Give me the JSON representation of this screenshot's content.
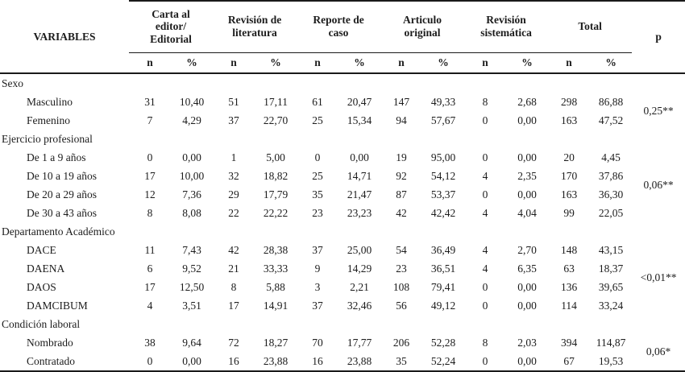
{
  "table": {
    "variables_header": "VARIABLES",
    "p_header": "p",
    "sub_headers": [
      "n",
      "%"
    ],
    "groups": [
      "Carta al\neditor/\nEditorial",
      "Revisión de\nliteratura",
      "Reporte de\ncaso",
      "Articulo\noriginal",
      "Revisión\nsistemática",
      "Total"
    ],
    "sections": [
      {
        "label": "Sexo",
        "p": "0,25**",
        "rows": [
          {
            "label": "Masculino",
            "values": [
              "31",
              "10,40",
              "51",
              "17,11",
              "61",
              "20,47",
              "147",
              "49,33",
              "8",
              "2,68",
              "298",
              "86,88"
            ]
          },
          {
            "label": "Femenino",
            "values": [
              "7",
              "4,29",
              "37",
              "22,70",
              "25",
              "15,34",
              "94",
              "57,67",
              "0",
              "0,00",
              "163",
              "47,52"
            ]
          }
        ]
      },
      {
        "label": "Ejercicio profesional",
        "p": "0,06**",
        "rows": [
          {
            "label": "De 1 a 9 años",
            "values": [
              "0",
              "0,00",
              "1",
              "5,00",
              "0",
              "0,00",
              "19",
              "95,00",
              "0",
              "0,00",
              "20",
              "4,45"
            ]
          },
          {
            "label": "De 10 a 19 años",
            "values": [
              "17",
              "10,00",
              "32",
              "18,82",
              "25",
              "14,71",
              "92",
              "54,12",
              "4",
              "2,35",
              "170",
              "37,86"
            ]
          },
          {
            "label": "De 20 a 29 años",
            "values": [
              "12",
              "7,36",
              "29",
              "17,79",
              "35",
              "21,47",
              "87",
              "53,37",
              "0",
              "0,00",
              "163",
              "36,30"
            ]
          },
          {
            "label": "De 30 a 43 años",
            "values": [
              "8",
              "8,08",
              "22",
              "22,22",
              "23",
              "23,23",
              "42",
              "42,42",
              "4",
              "4,04",
              "99",
              "22,05"
            ]
          }
        ]
      },
      {
        "label": "Departamento Académico",
        "p": "<0,01**",
        "rows": [
          {
            "label": "DACE",
            "values": [
              "11",
              "7,43",
              "42",
              "28,38",
              "37",
              "25,00",
              "54",
              "36,49",
              "4",
              "2,70",
              "148",
              "43,15"
            ]
          },
          {
            "label": "DAENA",
            "values": [
              "6",
              "9,52",
              "21",
              "33,33",
              "9",
              "14,29",
              "23",
              "36,51",
              "4",
              "6,35",
              "63",
              "18,37"
            ]
          },
          {
            "label": "DAOS",
            "values": [
              "17",
              "12,50",
              "8",
              "5,88",
              "3",
              "2,21",
              "108",
              "79,41",
              "0",
              "0,00",
              "136",
              "39,65"
            ]
          },
          {
            "label": "DAMCIBUM",
            "values": [
              "4",
              "3,51",
              "17",
              "14,91",
              "37",
              "32,46",
              "56",
              "49,12",
              "0",
              "0,00",
              "114",
              "33,24"
            ]
          }
        ]
      },
      {
        "label": "Condición laboral",
        "p": "0,06*",
        "rows": [
          {
            "label": "Nombrado",
            "values": [
              "38",
              "9,64",
              "72",
              "18,27",
              "70",
              "17,77",
              "206",
              "52,28",
              "8",
              "2,03",
              "394",
              "114,87"
            ]
          },
          {
            "label": "Contratado",
            "values": [
              "0",
              "0,00",
              "16",
              "23,88",
              "16",
              "23,88",
              "35",
              "52,24",
              "0",
              "0,00",
              "67",
              "19,53"
            ]
          }
        ]
      }
    ]
  }
}
